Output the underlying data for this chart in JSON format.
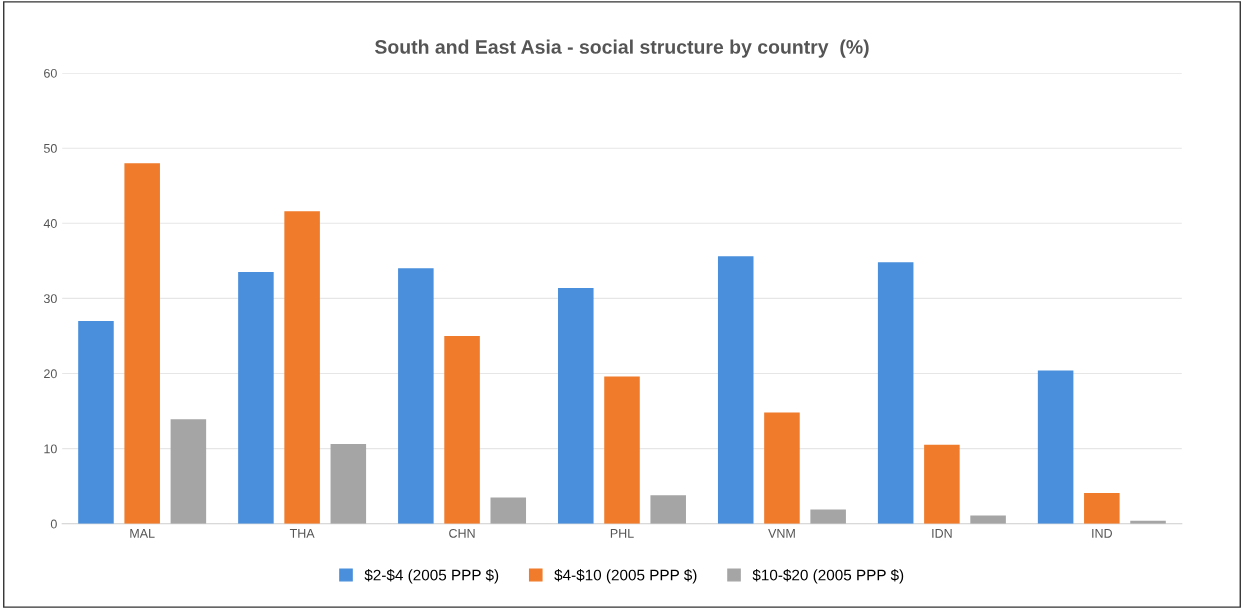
{
  "chart_data": {
    "type": "bar",
    "title": "South and East Asia - social structure by country  (%)",
    "categories": [
      "MAL",
      "THA",
      "CHN",
      "PHL",
      "VNM",
      "IDN",
      "IND"
    ],
    "series": [
      {
        "name": "$2-$4 (2005 PPP $)",
        "color": "#4a8fdb",
        "values": [
          27,
          33.5,
          34,
          31.4,
          35.6,
          34.8,
          20.4
        ]
      },
      {
        "name": "$4-$10 (2005 PPP $)",
        "color": "#f07b2a",
        "values": [
          48,
          41.6,
          25,
          19.6,
          14.8,
          10.5,
          4.1
        ]
      },
      {
        "name": "$10-$20 (2005 PPP $)",
        "color": "#a5a5a5",
        "values": [
          13.9,
          10.6,
          3.5,
          3.8,
          1.9,
          1.1,
          0.4
        ]
      }
    ],
    "ylim": [
      0,
      60
    ],
    "yticks": [
      0,
      10,
      20,
      30,
      40,
      50,
      60
    ],
    "grid": "y",
    "legend": "bottom"
  }
}
